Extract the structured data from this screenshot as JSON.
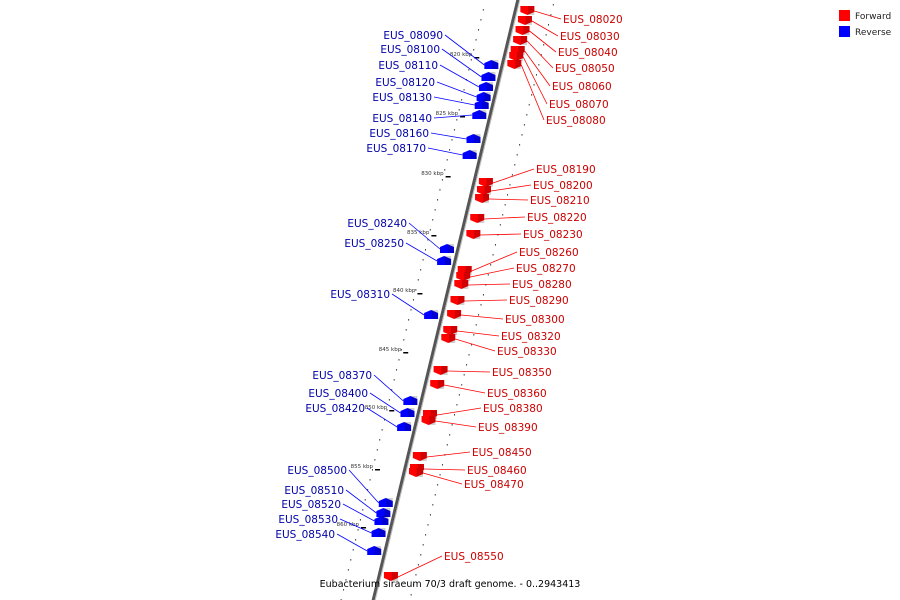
{
  "legend": [
    {
      "label": "Forward",
      "color": "#ff0000"
    },
    {
      "label": "Reverse",
      "color": "#0000ff"
    }
  ],
  "caption": "Eubacterium siraeum 70/3 draft genome. - 0..2943413",
  "colors": {
    "forward": "#ff0000",
    "reverse": "#0000ff",
    "backbone": "#777777"
  },
  "ticks": [
    "820 kbp",
    "825 kbp",
    "830 kbp",
    "835 kbp",
    "840 kbp",
    "845 kbp",
    "850 kbp",
    "855 kbp",
    "860 kbp"
  ],
  "forward_genes": [
    "EUS_08020",
    "EUS_08030",
    "EUS_08040",
    "EUS_08050",
    "EUS_08060",
    "EUS_08070",
    "EUS_08080",
    "EUS_08190",
    "EUS_08200",
    "EUS_08210",
    "EUS_08220",
    "EUS_08230",
    "EUS_08260",
    "EUS_08270",
    "EUS_08280",
    "EUS_08290",
    "EUS_08300",
    "EUS_08320",
    "EUS_08330",
    "EUS_08350",
    "EUS_08360",
    "EUS_08380",
    "EUS_08390",
    "EUS_08450",
    "EUS_08460",
    "EUS_08470",
    "EUS_08550"
  ],
  "reverse_genes": [
    "EUS_08090",
    "EUS_08100",
    "EUS_08110",
    "EUS_08120",
    "EUS_08130",
    "EUS_08140",
    "EUS_08160",
    "EUS_08170",
    "EUS_08240",
    "EUS_08250",
    "EUS_08310",
    "EUS_08370",
    "EUS_08400",
    "EUS_08420",
    "EUS_08500",
    "EUS_08510",
    "EUS_08520",
    "EUS_08530",
    "EUS_08540"
  ]
}
